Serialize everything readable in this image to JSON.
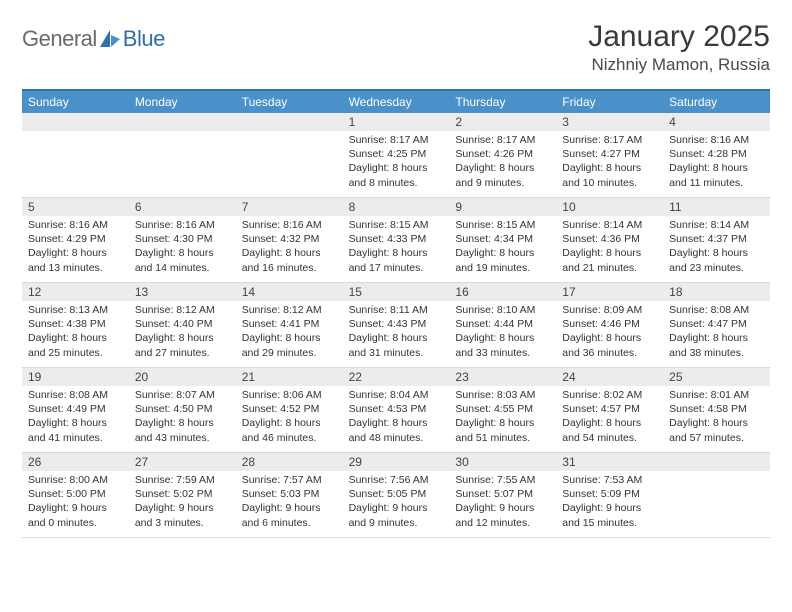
{
  "brand": {
    "text1": "General",
    "text2": "Blue"
  },
  "colors": {
    "accent": "#4a90c9",
    "accent_dark": "#2f6fad",
    "band": "#ececec",
    "text_muted": "#6a6a6a",
    "text_dark": "#3a3a3a",
    "divider": "#d9d9d9",
    "background": "#ffffff"
  },
  "title": "January 2025",
  "location": "Nizhniy Mamon, Russia",
  "weekday_header_bg": "#4a90c9",
  "weekday_header_color": "#ffffff",
  "day_band_bg": "#ececec",
  "weekdays": [
    "Sunday",
    "Monday",
    "Tuesday",
    "Wednesday",
    "Thursday",
    "Friday",
    "Saturday"
  ],
  "calendar": {
    "weeks": [
      [
        null,
        null,
        null,
        {
          "n": "1",
          "sunrise": "8:17 AM",
          "sunset": "4:25 PM",
          "daylight": "8 hours and 8 minutes."
        },
        {
          "n": "2",
          "sunrise": "8:17 AM",
          "sunset": "4:26 PM",
          "daylight": "8 hours and 9 minutes."
        },
        {
          "n": "3",
          "sunrise": "8:17 AM",
          "sunset": "4:27 PM",
          "daylight": "8 hours and 10 minutes."
        },
        {
          "n": "4",
          "sunrise": "8:16 AM",
          "sunset": "4:28 PM",
          "daylight": "8 hours and 11 minutes."
        }
      ],
      [
        {
          "n": "5",
          "sunrise": "8:16 AM",
          "sunset": "4:29 PM",
          "daylight": "8 hours and 13 minutes."
        },
        {
          "n": "6",
          "sunrise": "8:16 AM",
          "sunset": "4:30 PM",
          "daylight": "8 hours and 14 minutes."
        },
        {
          "n": "7",
          "sunrise": "8:16 AM",
          "sunset": "4:32 PM",
          "daylight": "8 hours and 16 minutes."
        },
        {
          "n": "8",
          "sunrise": "8:15 AM",
          "sunset": "4:33 PM",
          "daylight": "8 hours and 17 minutes."
        },
        {
          "n": "9",
          "sunrise": "8:15 AM",
          "sunset": "4:34 PM",
          "daylight": "8 hours and 19 minutes."
        },
        {
          "n": "10",
          "sunrise": "8:14 AM",
          "sunset": "4:36 PM",
          "daylight": "8 hours and 21 minutes."
        },
        {
          "n": "11",
          "sunrise": "8:14 AM",
          "sunset": "4:37 PM",
          "daylight": "8 hours and 23 minutes."
        }
      ],
      [
        {
          "n": "12",
          "sunrise": "8:13 AM",
          "sunset": "4:38 PM",
          "daylight": "8 hours and 25 minutes."
        },
        {
          "n": "13",
          "sunrise": "8:12 AM",
          "sunset": "4:40 PM",
          "daylight": "8 hours and 27 minutes."
        },
        {
          "n": "14",
          "sunrise": "8:12 AM",
          "sunset": "4:41 PM",
          "daylight": "8 hours and 29 minutes."
        },
        {
          "n": "15",
          "sunrise": "8:11 AM",
          "sunset": "4:43 PM",
          "daylight": "8 hours and 31 minutes."
        },
        {
          "n": "16",
          "sunrise": "8:10 AM",
          "sunset": "4:44 PM",
          "daylight": "8 hours and 33 minutes."
        },
        {
          "n": "17",
          "sunrise": "8:09 AM",
          "sunset": "4:46 PM",
          "daylight": "8 hours and 36 minutes."
        },
        {
          "n": "18",
          "sunrise": "8:08 AM",
          "sunset": "4:47 PM",
          "daylight": "8 hours and 38 minutes."
        }
      ],
      [
        {
          "n": "19",
          "sunrise": "8:08 AM",
          "sunset": "4:49 PM",
          "daylight": "8 hours and 41 minutes."
        },
        {
          "n": "20",
          "sunrise": "8:07 AM",
          "sunset": "4:50 PM",
          "daylight": "8 hours and 43 minutes."
        },
        {
          "n": "21",
          "sunrise": "8:06 AM",
          "sunset": "4:52 PM",
          "daylight": "8 hours and 46 minutes."
        },
        {
          "n": "22",
          "sunrise": "8:04 AM",
          "sunset": "4:53 PM",
          "daylight": "8 hours and 48 minutes."
        },
        {
          "n": "23",
          "sunrise": "8:03 AM",
          "sunset": "4:55 PM",
          "daylight": "8 hours and 51 minutes."
        },
        {
          "n": "24",
          "sunrise": "8:02 AM",
          "sunset": "4:57 PM",
          "daylight": "8 hours and 54 minutes."
        },
        {
          "n": "25",
          "sunrise": "8:01 AM",
          "sunset": "4:58 PM",
          "daylight": "8 hours and 57 minutes."
        }
      ],
      [
        {
          "n": "26",
          "sunrise": "8:00 AM",
          "sunset": "5:00 PM",
          "daylight": "9 hours and 0 minutes."
        },
        {
          "n": "27",
          "sunrise": "7:59 AM",
          "sunset": "5:02 PM",
          "daylight": "9 hours and 3 minutes."
        },
        {
          "n": "28",
          "sunrise": "7:57 AM",
          "sunset": "5:03 PM",
          "daylight": "9 hours and 6 minutes."
        },
        {
          "n": "29",
          "sunrise": "7:56 AM",
          "sunset": "5:05 PM",
          "daylight": "9 hours and 9 minutes."
        },
        {
          "n": "30",
          "sunrise": "7:55 AM",
          "sunset": "5:07 PM",
          "daylight": "9 hours and 12 minutes."
        },
        {
          "n": "31",
          "sunrise": "7:53 AM",
          "sunset": "5:09 PM",
          "daylight": "9 hours and 15 minutes."
        },
        null
      ]
    ]
  },
  "labels": {
    "sunrise": "Sunrise:",
    "sunset": "Sunset:",
    "daylight": "Daylight:"
  }
}
